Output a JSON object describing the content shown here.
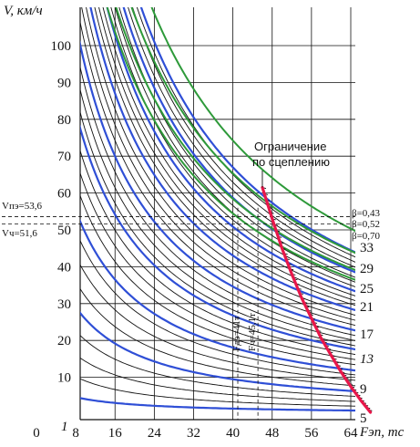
{
  "chart_data": {
    "type": "line",
    "y_axis_label": "V, км/ч",
    "x_axis_label": "Fэп, тс",
    "x_ticks": [
      "0",
      "8",
      "16",
      "24",
      "32",
      "40",
      "48",
      "56",
      "64"
    ],
    "y_ticks": [
      "10",
      "20",
      "30",
      "40",
      "50",
      "60",
      "70",
      "80",
      "90",
      "100"
    ],
    "xlim": [
      0,
      69
    ],
    "ylim": [
      0,
      110
    ],
    "grid": true,
    "adhesion_label": [
      "Ограничение",
      "по сцеплению"
    ],
    "adhesion_limit": {
      "color": "#e8174a",
      "x": [
        46,
        48,
        50,
        52,
        54,
        56,
        58,
        60,
        62,
        64,
        66,
        68
      ],
      "y": [
        61.5,
        53,
        45,
        38,
        31.5,
        26,
        20.5,
        16,
        11.5,
        7.5,
        3.8,
        0.5
      ]
    },
    "speed_markers": [
      {
        "label": "Vпэ=53,6",
        "value": 53.6
      },
      {
        "label": "Vч=51,6",
        "value": 51.6
      }
    ],
    "force_markers": [
      {
        "label": "Fдэ=41т",
        "value": 41
      },
      {
        "label": "Fч=45,1т",
        "value": 45.1
      }
    ],
    "beta_labels": [
      "β=0,43",
      "β=0,52",
      "β=0,70"
    ],
    "position_labels": [
      "33",
      "29",
      "25",
      "21",
      "17",
      "13",
      "9",
      "5",
      "1"
    ],
    "field_weakening_curves": {
      "color": "#2e9a3a",
      "series": [
        {
          "name": "β=0,43",
          "k": 3750,
          "a": 10.5
        },
        {
          "name": "β=0,52",
          "k": 3300,
          "a": 10.5
        },
        {
          "name": "β=0,70",
          "k": 2950,
          "a": 10.5
        },
        {
          "name": "",
          "k": 2750,
          "a": 10.5
        }
      ]
    },
    "position_curves": {
      "color": "#2f4fd6",
      "a": 7.5,
      "x_max": 70,
      "series": [
        {
          "name": "33",
          "v64": 44.5
        },
        {
          "name": "29",
          "v64": 39
        },
        {
          "name": "25",
          "v64": 33.8
        },
        {
          "name": "21",
          "v64": 28.6
        },
        {
          "name": "17",
          "v64": 23
        },
        {
          "name": "13",
          "v64": 17.8
        },
        {
          "name": "9",
          "v64": 12
        },
        {
          "name": "5",
          "v64": 6.3
        },
        {
          "name": "1",
          "v64": 1
        }
      ]
    },
    "intermediate_curves": {
      "color": "#111111",
      "a": 7.5,
      "x_max": 70,
      "v64": [
        43.2,
        41.8,
        40.4,
        37.6,
        36.3,
        35.0,
        32.5,
        31.2,
        29.9,
        27.2,
        25.8,
        24.4,
        21.6,
        20.2,
        18.8,
        16.4,
        15.0,
        13.6,
        10.8,
        9.3,
        7.8,
        4.9,
        3.5,
        2.2
      ]
    }
  }
}
